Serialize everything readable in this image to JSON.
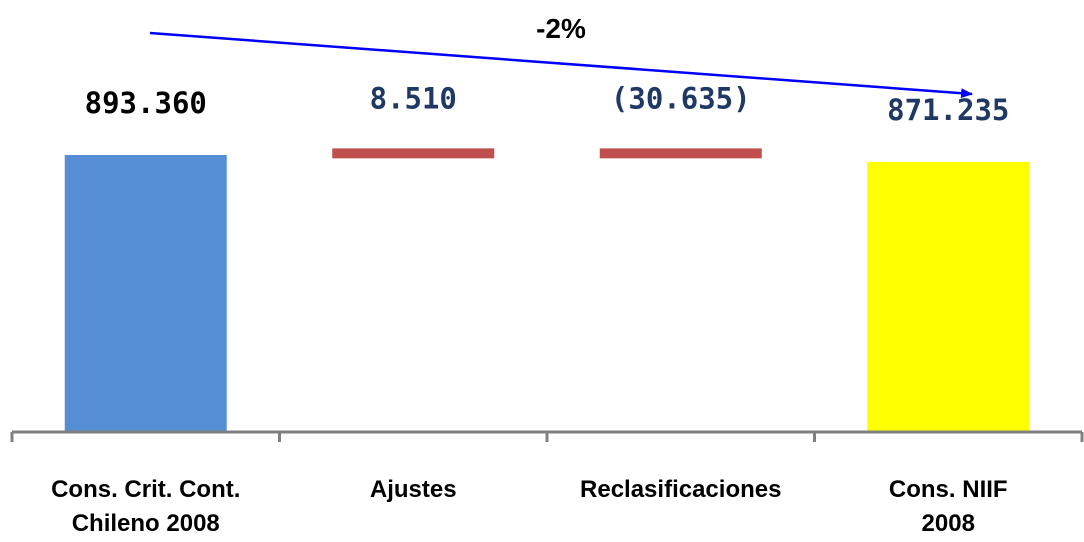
{
  "chart_data": {
    "type": "bar",
    "subtype": "waterfall",
    "categories": [
      [
        "Cons. Crit. Cont.",
        "Chileno 2008"
      ],
      [
        "Ajustes"
      ],
      [
        "Reclasificaciones"
      ],
      [
        "Cons. NIIF",
        "2008"
      ]
    ],
    "values": [
      893360,
      8510,
      -30635,
      871235
    ],
    "value_labels": [
      "893.360",
      "8.510",
      "(30.635)",
      "871.235"
    ],
    "kinds": [
      "total",
      "delta",
      "delta",
      "total"
    ],
    "bar_colors": [
      "#558ed5",
      "#c0504d",
      "#c0504d",
      "#ffff00"
    ],
    "label_colors": [
      "#000000",
      "#1f3864",
      "#1f3864",
      "#1f3864"
    ],
    "ylim": [
      0,
      1000000
    ],
    "grid": false,
    "legend": "none",
    "annotation": {
      "text": "-2%",
      "arrow_color": "#0000ff",
      "from_category": 0,
      "to_category": 3
    }
  }
}
